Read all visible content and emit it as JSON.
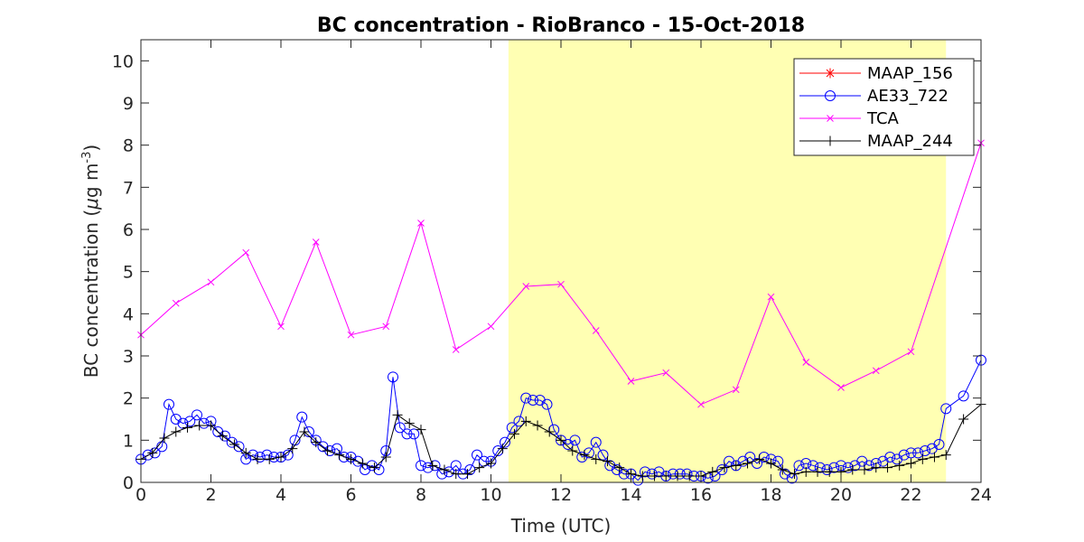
{
  "chart_data": {
    "type": "line",
    "title": "BC concentration  - RioBranco - 15-Oct-2018",
    "xlabel": "Time (UTC)",
    "ylabel_main": "BC concentration (",
    "ylabel_mu": "μ",
    "ylabel_unit": "g m",
    "ylabel_sup": "-3",
    "ylabel_close": ")",
    "xlim": [
      0,
      24
    ],
    "ylim": [
      0,
      10.5
    ],
    "xticks": [
      0,
      2,
      4,
      6,
      8,
      10,
      12,
      14,
      16,
      18,
      20,
      22,
      24
    ],
    "yticks": [
      0,
      1,
      2,
      3,
      4,
      5,
      6,
      7,
      8,
      9,
      10
    ],
    "grid": false,
    "legend_position": "top-right",
    "night_shading": {
      "start": 10.5,
      "end": 23.0,
      "color": "#ffffb3"
    },
    "series": [
      {
        "name": "MAAP_156",
        "color": "#ff0000",
        "marker": "asterisk",
        "x": [],
        "y": []
      },
      {
        "name": "AE33_722",
        "color": "#0000ff",
        "marker": "circle",
        "x": [
          0.0,
          0.2,
          0.4,
          0.6,
          0.8,
          1.0,
          1.2,
          1.4,
          1.6,
          1.8,
          2.0,
          2.2,
          2.4,
          2.6,
          2.8,
          3.0,
          3.2,
          3.4,
          3.6,
          3.8,
          4.0,
          4.2,
          4.4,
          4.6,
          4.8,
          5.0,
          5.2,
          5.4,
          5.6,
          5.8,
          6.0,
          6.2,
          6.4,
          6.6,
          6.8,
          7.0,
          7.2,
          7.4,
          7.6,
          7.8,
          8.0,
          8.2,
          8.4,
          8.6,
          8.8,
          9.0,
          9.2,
          9.4,
          9.6,
          9.8,
          10.0,
          10.2,
          10.4,
          10.6,
          10.8,
          11.0,
          11.2,
          11.4,
          11.6,
          11.8,
          12.0,
          12.2,
          12.4,
          12.6,
          12.8,
          13.0,
          13.2,
          13.4,
          13.6,
          13.8,
          14.0,
          14.2,
          14.4,
          14.6,
          14.8,
          15.0,
          15.2,
          15.4,
          15.6,
          15.8,
          16.0,
          16.2,
          16.4,
          16.6,
          16.8,
          17.0,
          17.2,
          17.4,
          17.6,
          17.8,
          18.0,
          18.2,
          18.4,
          18.6,
          18.8,
          19.0,
          19.2,
          19.4,
          19.6,
          19.8,
          20.0,
          20.2,
          20.4,
          20.6,
          20.8,
          21.0,
          21.2,
          21.4,
          21.6,
          21.8,
          22.0,
          22.2,
          22.4,
          22.6,
          22.8,
          23.0,
          23.5,
          24.0
        ],
        "y": [
          0.55,
          0.65,
          0.7,
          0.85,
          1.85,
          1.5,
          1.4,
          1.45,
          1.6,
          1.4,
          1.45,
          1.2,
          1.1,
          0.95,
          0.85,
          0.55,
          0.65,
          0.6,
          0.65,
          0.6,
          0.6,
          0.65,
          1.0,
          1.55,
          1.2,
          1.0,
          0.85,
          0.75,
          0.8,
          0.6,
          0.6,
          0.5,
          0.3,
          0.4,
          0.3,
          0.75,
          2.5,
          1.3,
          1.15,
          1.15,
          0.4,
          0.35,
          0.4,
          0.2,
          0.25,
          0.4,
          0.2,
          0.3,
          0.65,
          0.5,
          0.5,
          0.75,
          0.95,
          1.3,
          1.45,
          2.0,
          1.95,
          1.95,
          1.85,
          1.25,
          1.0,
          0.9,
          1.0,
          0.6,
          0.7,
          0.95,
          0.65,
          0.4,
          0.3,
          0.2,
          0.2,
          0.05,
          0.25,
          0.2,
          0.25,
          0.15,
          0.2,
          0.2,
          0.2,
          0.15,
          0.15,
          0.1,
          0.15,
          0.3,
          0.5,
          0.4,
          0.5,
          0.6,
          0.45,
          0.6,
          0.55,
          0.5,
          0.2,
          0.1,
          0.4,
          0.45,
          0.4,
          0.35,
          0.3,
          0.35,
          0.4,
          0.35,
          0.4,
          0.5,
          0.4,
          0.45,
          0.5,
          0.6,
          0.55,
          0.65,
          0.7,
          0.7,
          0.75,
          0.8,
          0.9,
          1.75,
          2.05,
          2.9
        ]
      },
      {
        "name": "TCA",
        "color": "#ff00ff",
        "marker": "x",
        "x": [
          0.0,
          1.0,
          2.0,
          3.0,
          4.0,
          5.0,
          6.0,
          7.0,
          8.0,
          9.0,
          10.0,
          11.0,
          12.0,
          13.0,
          14.0,
          15.0,
          16.0,
          17.0,
          18.0,
          19.0,
          20.0,
          21.0,
          22.0,
          24.0
        ],
        "y": [
          3.5,
          4.25,
          4.75,
          5.45,
          3.7,
          5.7,
          3.5,
          3.7,
          6.15,
          3.15,
          3.7,
          4.65,
          4.7,
          3.6,
          2.4,
          2.6,
          1.85,
          2.2,
          4.4,
          2.85,
          2.25,
          2.65,
          3.1,
          8.05
        ]
      },
      {
        "name": "MAAP_244",
        "color": "#000000",
        "marker": "plus",
        "x": [
          0.0,
          0.33,
          0.67,
          1.0,
          1.33,
          1.67,
          2.0,
          2.33,
          2.67,
          3.0,
          3.33,
          3.67,
          4.0,
          4.33,
          4.67,
          5.0,
          5.33,
          5.67,
          6.0,
          6.33,
          6.67,
          7.0,
          7.33,
          7.67,
          8.0,
          8.33,
          8.67,
          9.0,
          9.33,
          9.67,
          10.0,
          10.33,
          10.67,
          11.0,
          11.33,
          11.67,
          12.0,
          12.33,
          12.67,
          13.0,
          13.33,
          13.67,
          14.0,
          14.33,
          14.67,
          15.0,
          15.33,
          15.67,
          16.0,
          16.33,
          16.67,
          17.0,
          17.33,
          17.67,
          18.0,
          18.33,
          18.67,
          19.0,
          19.33,
          19.67,
          20.0,
          20.33,
          20.67,
          21.0,
          21.33,
          21.67,
          22.0,
          22.33,
          22.67,
          23.0,
          23.5,
          24.0
        ],
        "y": [
          0.55,
          0.7,
          1.05,
          1.2,
          1.3,
          1.35,
          1.35,
          1.1,
          0.9,
          0.7,
          0.55,
          0.55,
          0.6,
          0.8,
          1.2,
          0.95,
          0.75,
          0.65,
          0.55,
          0.45,
          0.35,
          0.6,
          1.6,
          1.4,
          1.25,
          0.4,
          0.3,
          0.2,
          0.2,
          0.35,
          0.45,
          0.8,
          1.15,
          1.45,
          1.35,
          1.2,
          1.0,
          0.75,
          0.65,
          0.55,
          0.5,
          0.35,
          0.2,
          0.15,
          0.15,
          0.15,
          0.15,
          0.15,
          0.15,
          0.25,
          0.35,
          0.4,
          0.45,
          0.55,
          0.45,
          0.3,
          0.2,
          0.25,
          0.25,
          0.25,
          0.25,
          0.3,
          0.3,
          0.35,
          0.35,
          0.4,
          0.45,
          0.55,
          0.6,
          0.65,
          1.5,
          1.85
        ]
      }
    ]
  }
}
